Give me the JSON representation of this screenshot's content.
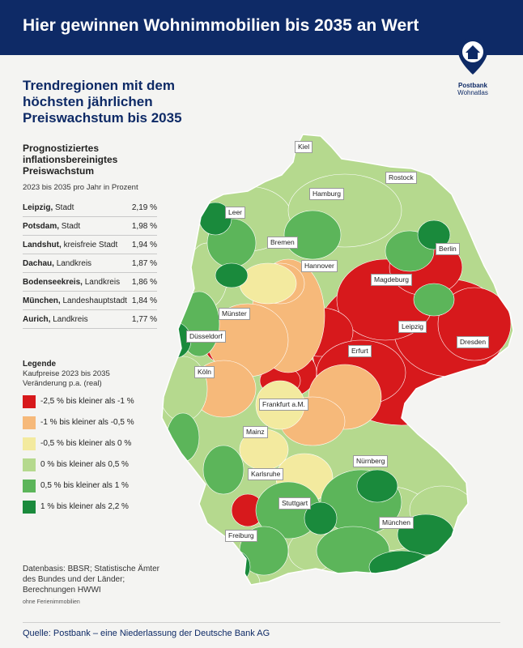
{
  "header": {
    "title": "Hier gewinnen Wohnimmobilien bis 2035 an Wert"
  },
  "logo": {
    "icon": "house-pin-icon",
    "brand": "Postbank",
    "sub": "Wohnatlas"
  },
  "subtitle": "Trendregionen mit dem höchsten jährlichen Preiswachstum bis 2035",
  "ranking": {
    "title": "Prognostiziertes inflationsbereinigtes Preiswachstum",
    "period": "2023 bis 2035 pro Jahr in Prozent",
    "rows": [
      {
        "name": "Leipzig,",
        "type": "Stadt",
        "value": "2,19 %"
      },
      {
        "name": "Potsdam,",
        "type": "Stadt",
        "value": "1,98 %"
      },
      {
        "name": "Landshut,",
        "type": "kreisfreie Stadt",
        "value": "1,94 %"
      },
      {
        "name": "Dachau,",
        "type": "Landkreis",
        "value": "1,87 %"
      },
      {
        "name": "Bodenseekreis,",
        "type": "Landkreis",
        "value": "1,86 %"
      },
      {
        "name": "München,",
        "type": "Landeshauptstadt",
        "value": "1,84 %"
      },
      {
        "name": "Aurich,",
        "type": "Landkreis",
        "value": "1,77 %"
      }
    ]
  },
  "legend": {
    "title": "Legende",
    "subtitle": "Kaufpreise 2023 bis 2035 Veränderung p.a. (real)",
    "items": [
      {
        "label": "-2,5 % bis kleiner als -1 %",
        "color": "#d7191c"
      },
      {
        "label": "-1 % bis kleiner als -0,5 %",
        "color": "#f6b97a"
      },
      {
        "label": "-0,5 % bis kleiner als 0 %",
        "color": "#f3ea9f"
      },
      {
        "label": "0 % bis kleiner als 0,5 %",
        "color": "#b5d98e"
      },
      {
        "label": "0,5 % bis kleiner als 1 %",
        "color": "#5cb55a"
      },
      {
        "label": "1 % bis kleiner als 2,2 %",
        "color": "#1a8a3c"
      }
    ]
  },
  "map": {
    "cities": [
      "Kiel",
      "Rostock",
      "Hamburg",
      "Leer",
      "Bremen",
      "Berlin",
      "Hannover",
      "Magdeburg",
      "Münster",
      "Düsseldorf",
      "Leipzig",
      "Dresden",
      "Erfurt",
      "Köln",
      "Frankfurt a.M.",
      "Mainz",
      "Nürnberg",
      "Karlsruhe",
      "Stuttgart",
      "Freiburg",
      "München"
    ]
  },
  "datasource": "Datenbasis: BBSR; Statistische Ämter des Bundes und der Länder; Berechnungen HWWI",
  "note": "ohne Ferienimmobilien",
  "footer": "Quelle: Postbank – eine Niederlassung der Deutsche Bank AG"
}
